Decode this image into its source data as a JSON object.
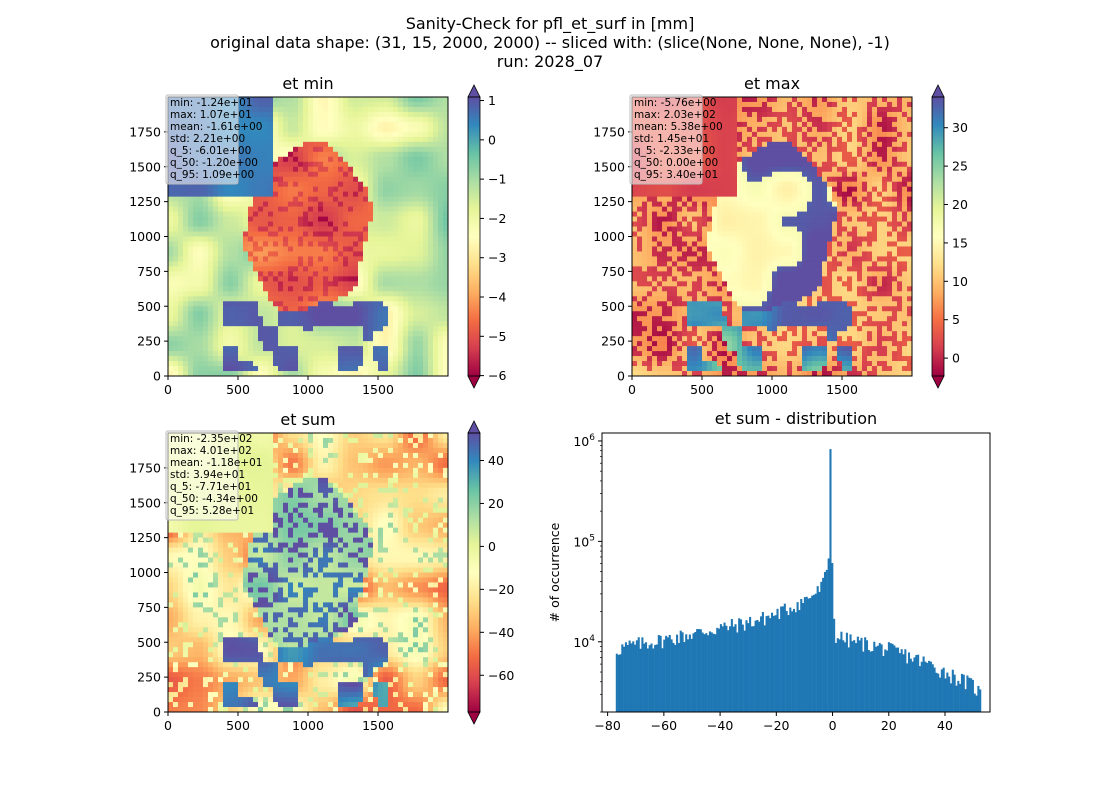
{
  "suptitle": {
    "line1": "Sanity-Check for pfl_et_surf in [mm]",
    "line2": "original data shape: (31, 15, 2000, 2000) -- sliced with: (slice(None, None, None), -1)",
    "line3": "run: 2028_07"
  },
  "maps": [
    {
      "id": "et-min",
      "title": "et min",
      "stats": [
        "min: -1.24e+01",
        "max: 1.07e+01",
        "mean: -1.61e+00",
        "std: 2.21e+00",
        "q_5: -6.01e+00",
        "q_50: -1.20e+00",
        "q_95: 1.09e+00"
      ],
      "x_ticks": [
        "0",
        "500",
        "1000",
        "1500"
      ],
      "y_ticks": [
        "0",
        "250",
        "500",
        "750",
        "1000",
        "1250",
        "1500",
        "1750"
      ],
      "x_range": [
        0,
        2000
      ],
      "y_range": [
        0,
        2000
      ],
      "colormap": "Spectral",
      "color_range": [
        -6.01,
        1.09
      ],
      "colorbar_ticks": [
        "1",
        "0",
        "−1",
        "−2",
        "−3",
        "−4",
        "−5",
        "−6"
      ],
      "colorbar_tick_values": [
        1,
        0,
        -1,
        -2,
        -3,
        -4,
        -5,
        -6
      ]
    },
    {
      "id": "et-max",
      "title": "et max",
      "stats": [
        "min: -5.76e+00",
        "max: 2.03e+02",
        "mean: 5.38e+00",
        "std: 1.45e+01",
        "q_5: -2.33e+00",
        "q_50: 0.00e+00",
        "q_95: 3.40e+01"
      ],
      "x_ticks": [
        "0",
        "500",
        "1000",
        "1500"
      ],
      "y_ticks": [
        "0",
        "250",
        "500",
        "750",
        "1000",
        "1250",
        "1500",
        "1750"
      ],
      "x_range": [
        0,
        2000
      ],
      "y_range": [
        0,
        2000
      ],
      "colormap": "Spectral",
      "color_range": [
        -2.33,
        34.0
      ],
      "colorbar_ticks": [
        "30",
        "25",
        "20",
        "15",
        "10",
        "5",
        "0"
      ],
      "colorbar_tick_values": [
        30,
        25,
        20,
        15,
        10,
        5,
        0
      ]
    },
    {
      "id": "et-sum",
      "title": "et sum",
      "stats": [
        "min: -2.35e+02",
        "max: 4.01e+02",
        "mean: -1.18e+01",
        "std: 3.94e+01",
        "q_5: -7.71e+01",
        "q_50: -4.34e+00",
        "q_95: 5.28e+01"
      ],
      "x_ticks": [
        "0",
        "500",
        "1000",
        "1500"
      ],
      "y_ticks": [
        "0",
        "250",
        "500",
        "750",
        "1000",
        "1250",
        "1500",
        "1750"
      ],
      "x_range": [
        0,
        2000
      ],
      "y_range": [
        0,
        2000
      ],
      "colormap": "Spectral",
      "color_range": [
        -77.1,
        52.8
      ],
      "colorbar_ticks": [
        "40",
        "20",
        "0",
        "−20",
        "−40",
        "−60"
      ],
      "colorbar_tick_values": [
        40,
        20,
        0,
        -20,
        -40,
        -60
      ]
    }
  ],
  "chart_data": {
    "type": "bar",
    "title": "et sum - distribution",
    "xlabel": "",
    "ylabel": "# of occurrence",
    "x_range": [
      -82,
      56
    ],
    "y_range": [
      2000,
      1200000
    ],
    "y_scale": "log",
    "color": "#1f77b4",
    "x_ticks": [
      "−80",
      "−60",
      "−40",
      "−20",
      "0",
      "20",
      "40"
    ],
    "x_tick_values": [
      -80,
      -60,
      -40,
      -20,
      0,
      20,
      40
    ],
    "y_ticks": [
      {
        "base": "10",
        "exp": "4",
        "value": 10000
      },
      {
        "base": "10",
        "exp": "5",
        "value": 100000
      },
      {
        "base": "10",
        "exp": "6",
        "value": 1000000
      }
    ],
    "bin_range": [
      -77.1,
      52.8
    ],
    "bins": 200,
    "profile_x": [
      -77.1,
      -75,
      -70,
      -65,
      -60,
      -55,
      -50,
      -45,
      -40,
      -35,
      -30,
      -25,
      -20,
      -15,
      -10,
      -5,
      -3,
      -2,
      -1,
      -0.6,
      0,
      0.7,
      1,
      3,
      5,
      10,
      15,
      20,
      25,
      30,
      35,
      40,
      45,
      50,
      52.8
    ],
    "profile_y": [
      8200,
      8800,
      9400,
      9900,
      10500,
      11200,
      12000,
      12800,
      13700,
      14600,
      15600,
      17000,
      19000,
      22000,
      26000,
      32000,
      40000,
      55000,
      80000,
      830000,
      35000,
      12000,
      11500,
      11000,
      10500,
      9800,
      9100,
      8400,
      7600,
      6700,
      5900,
      5000,
      4300,
      3700,
      3000
    ]
  }
}
